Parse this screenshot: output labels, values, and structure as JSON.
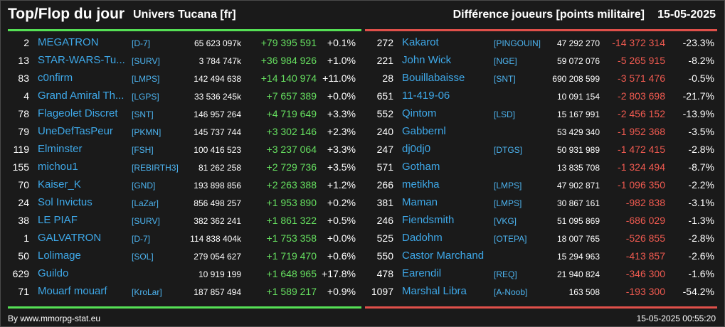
{
  "header": {
    "title": "Top/Flop du jour",
    "universe": "Univers Tucana [fr]",
    "subtitle": "Différence joueurs [points militaire]",
    "date": "15-05-2025"
  },
  "colors": {
    "top_accent": "#55e055",
    "flop_accent": "#e0504a",
    "link": "#3ea8e8"
  },
  "top": [
    {
      "rank": "2",
      "name": "MEGATRON",
      "alliance": "[D-7]",
      "points": "65 623 097k",
      "diff": "+79 395 591",
      "pct": "+0.1%"
    },
    {
      "rank": "13",
      "name": "STAR-WARS-Tu...",
      "alliance": "[SURV]",
      "points": "3 784 747k",
      "diff": "+36 984 926",
      "pct": "+1.0%"
    },
    {
      "rank": "83",
      "name": "c0nfirm",
      "alliance": "[LMPS]",
      "points": "142 494 638",
      "diff": "+14 140 974",
      "pct": "+11.0%"
    },
    {
      "rank": "4",
      "name": "Grand Amiral Th...",
      "alliance": "[LGPS]",
      "points": "33 536 245k",
      "diff": "+7 657 389",
      "pct": "+0.0%"
    },
    {
      "rank": "78",
      "name": "Flageolet Discret",
      "alliance": "[SNT]",
      "points": "146 957 264",
      "diff": "+4 719 649",
      "pct": "+3.3%"
    },
    {
      "rank": "79",
      "name": "UneDefTasPeur",
      "alliance": "[PKMN]",
      "points": "145 737 744",
      "diff": "+3 302 146",
      "pct": "+2.3%"
    },
    {
      "rank": "119",
      "name": "Elminster",
      "alliance": "[FSH]",
      "points": "100 416 523",
      "diff": "+3 237 064",
      "pct": "+3.3%"
    },
    {
      "rank": "155",
      "name": "michou1",
      "alliance": "[REBIRTH3]",
      "points": "81 262 258",
      "diff": "+2 729 736",
      "pct": "+3.5%"
    },
    {
      "rank": "70",
      "name": "Kaiser_K",
      "alliance": "[GND]",
      "points": "193 898 856",
      "diff": "+2 263 388",
      "pct": "+1.2%"
    },
    {
      "rank": "24",
      "name": "Sol Invictus",
      "alliance": "[LaZar]",
      "points": "856 498 257",
      "diff": "+1 953 890",
      "pct": "+0.2%"
    },
    {
      "rank": "38",
      "name": "LE PIAF",
      "alliance": "[SURV]",
      "points": "382 362 241",
      "diff": "+1 861 322",
      "pct": "+0.5%"
    },
    {
      "rank": "1",
      "name": "GALVATRON",
      "alliance": "[D-7]",
      "points": "114 838 404k",
      "diff": "+1 753 358",
      "pct": "+0.0%"
    },
    {
      "rank": "50",
      "name": "Lolimage",
      "alliance": "[SOL]",
      "points": "279 054 627",
      "diff": "+1 719 470",
      "pct": "+0.6%"
    },
    {
      "rank": "629",
      "name": "Guildo",
      "alliance": "",
      "points": "10 919 199",
      "diff": "+1 648 965",
      "pct": "+17.8%"
    },
    {
      "rank": "71",
      "name": "Mouarf mouarf",
      "alliance": "[KroLar]",
      "points": "187 857 494",
      "diff": "+1 589 217",
      "pct": "+0.9%"
    }
  ],
  "flop": [
    {
      "rank": "272",
      "name": "Kakarot",
      "alliance": "[PINGOUIN]",
      "points": "47 292 270",
      "diff": "-14 372 314",
      "pct": "-23.3%"
    },
    {
      "rank": "221",
      "name": "John Wick",
      "alliance": "[NGE]",
      "points": "59 072 076",
      "diff": "-5 265 915",
      "pct": "-8.2%"
    },
    {
      "rank": "28",
      "name": "Bouillabaisse",
      "alliance": "[SNT]",
      "points": "690 208 599",
      "diff": "-3 571 476",
      "pct": "-0.5%"
    },
    {
      "rank": "651",
      "name": "11-419-06",
      "alliance": "",
      "points": "10 091 154",
      "diff": "-2 803 698",
      "pct": "-21.7%"
    },
    {
      "rank": "552",
      "name": "Qintom",
      "alliance": "[LSD]",
      "points": "15 167 991",
      "diff": "-2 456 152",
      "pct": "-13.9%"
    },
    {
      "rank": "240",
      "name": "Gabbernl",
      "alliance": "",
      "points": "53 429 340",
      "diff": "-1 952 368",
      "pct": "-3.5%"
    },
    {
      "rank": "247",
      "name": "dj0dj0",
      "alliance": "[DTGS]",
      "points": "50 931 989",
      "diff": "-1 472 415",
      "pct": "-2.8%"
    },
    {
      "rank": "571",
      "name": "Gotham",
      "alliance": "",
      "points": "13 835 708",
      "diff": "-1 324 494",
      "pct": "-8.7%"
    },
    {
      "rank": "266",
      "name": "metikha",
      "alliance": "[LMPS]",
      "points": "47 902 871",
      "diff": "-1 096 350",
      "pct": "-2.2%"
    },
    {
      "rank": "381",
      "name": "Maman",
      "alliance": "[LMPS]",
      "points": "30 867 161",
      "diff": "-982 838",
      "pct": "-3.1%"
    },
    {
      "rank": "246",
      "name": "Fiendsmith",
      "alliance": "[VKG]",
      "points": "51 095 869",
      "diff": "-686 029",
      "pct": "-1.3%"
    },
    {
      "rank": "525",
      "name": "Dadohm",
      "alliance": "[OTEPA]",
      "points": "18 007 765",
      "diff": "-526 855",
      "pct": "-2.8%"
    },
    {
      "rank": "550",
      "name": "Castor Marchand",
      "alliance": "",
      "points": "15 294 963",
      "diff": "-413 857",
      "pct": "-2.6%"
    },
    {
      "rank": "478",
      "name": "Earendil",
      "alliance": "[REQ]",
      "points": "21 940 824",
      "diff": "-346 300",
      "pct": "-1.6%"
    },
    {
      "rank": "1097",
      "name": "Marshal Libra",
      "alliance": "[A-Noob]",
      "points": "163 508",
      "diff": "-193 300",
      "pct": "-54.2%"
    }
  ],
  "footer": {
    "source": "By www.mmorpg-stat.eu",
    "timestamp": "15-05-2025 00:55:20"
  }
}
